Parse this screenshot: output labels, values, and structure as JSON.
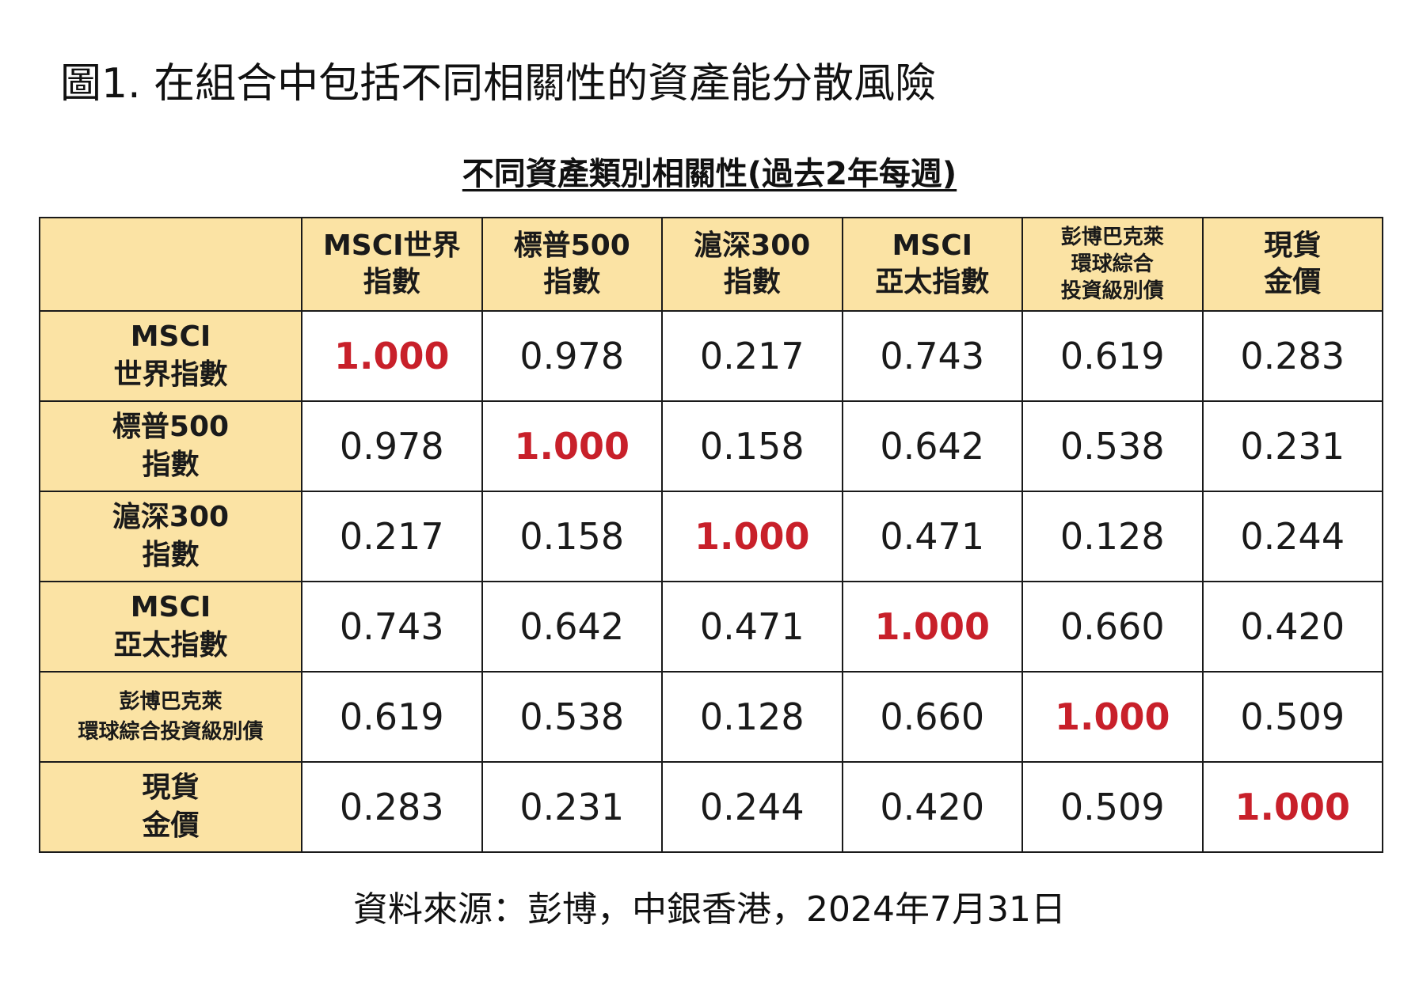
{
  "figure_title": "圖1. 在組合中包括不同相關性的資產能分散風險",
  "table_title": "不同資產類別相關性(過去2年每週)",
  "source": "資料來源：彭博，中銀香港，2024年7月31日",
  "colors": {
    "header_fill": "#fbe3a4",
    "diagonal_text": "#c8202a",
    "border": "#1a1a1a"
  },
  "chart_data": {
    "type": "table",
    "title": "不同資產類別相關性(過去2年每週)",
    "columns": [
      {
        "lines": [
          "MSCI世界",
          "指數"
        ]
      },
      {
        "lines": [
          "標普500",
          "指數"
        ]
      },
      {
        "lines": [
          "滬深300",
          "指數"
        ]
      },
      {
        "lines": [
          "MSCI",
          "亞太指數"
        ]
      },
      {
        "lines": [
          "彭博巴克萊",
          "環球綜合",
          "投資級別債"
        ]
      },
      {
        "lines": [
          "現貨",
          "金價"
        ]
      }
    ],
    "rows": [
      {
        "lines": [
          "MSCI",
          "世界指數"
        ],
        "values": [
          "1.000",
          "0.978",
          "0.217",
          "0.743",
          "0.619",
          "0.283"
        ]
      },
      {
        "lines": [
          "標普500",
          "指數"
        ],
        "values": [
          "0.978",
          "1.000",
          "0.158",
          "0.642",
          "0.538",
          "0.231"
        ]
      },
      {
        "lines": [
          "滬深300",
          "指數"
        ],
        "values": [
          "0.217",
          "0.158",
          "1.000",
          "0.471",
          "0.128",
          "0.244"
        ]
      },
      {
        "lines": [
          "MSCI",
          "亞太指數"
        ],
        "values": [
          "0.743",
          "0.642",
          "0.471",
          "1.000",
          "0.660",
          "0.420"
        ]
      },
      {
        "lines": [
          "彭博巴克萊",
          "環球綜合投資級別債"
        ],
        "values": [
          "0.619",
          "0.538",
          "0.128",
          "0.660",
          "1.000",
          "0.509"
        ]
      },
      {
        "lines": [
          "現貨",
          "金價"
        ],
        "values": [
          "0.283",
          "0.231",
          "0.244",
          "0.420",
          "0.509",
          "1.000"
        ]
      }
    ]
  }
}
